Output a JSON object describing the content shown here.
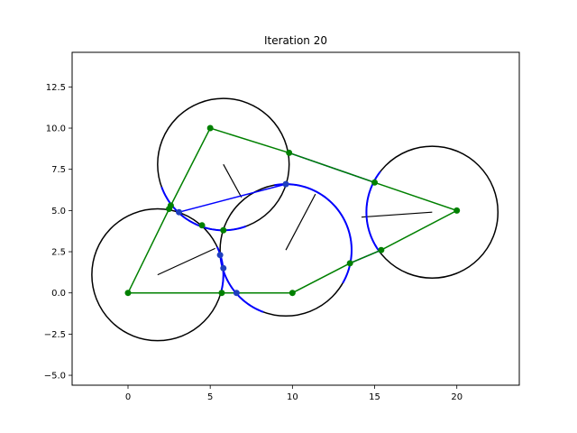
{
  "chart_data": {
    "type": "scatter",
    "title": "Iteration 20",
    "xlabel": "",
    "ylabel": "",
    "xlim": [
      -3.4,
      23.8
    ],
    "ylim": [
      -5.6,
      14.6
    ],
    "xticks": [
      0,
      5,
      10,
      15,
      20
    ],
    "yticks": [
      -5.0,
      -2.5,
      0.0,
      2.5,
      5.0,
      7.5,
      10.0,
      12.5
    ],
    "grid": false,
    "colors": {
      "circle": "#000000",
      "arc": "#0000ff",
      "polygon": "#008000",
      "point_blue": "#1f3fbf",
      "point_green": "#008000"
    },
    "circles": [
      {
        "cx": 1.8,
        "cy": 1.1,
        "r": 4.0
      },
      {
        "cx": 5.8,
        "cy": 7.8,
        "r": 4.0
      },
      {
        "cx": 9.6,
        "cy": 2.6,
        "r": 4.0
      },
      {
        "cx": 18.5,
        "cy": 4.9,
        "r": 4.0
      }
    ],
    "direction_segments": [
      [
        [
          1.8,
          1.1
        ],
        [
          5.3,
          2.7
        ]
      ],
      [
        [
          5.8,
          7.8
        ],
        [
          6.9,
          5.8
        ]
      ],
      [
        [
          9.6,
          2.6
        ],
        [
          11.4,
          6.0
        ]
      ],
      [
        [
          14.2,
          4.6
        ],
        [
          18.5,
          4.9
        ]
      ]
    ],
    "polygon": [
      [
        0,
        0
      ],
      [
        2.6,
        5.3
      ],
      [
        5.0,
        10.0
      ],
      [
        9.8,
        8.5
      ],
      [
        15.0,
        6.7
      ],
      [
        20.0,
        5.0
      ],
      [
        15.4,
        2.6
      ],
      [
        13.5,
        1.8
      ],
      [
        10.0,
        0.0
      ],
      [
        0,
        0
      ]
    ],
    "arcs": [
      {
        "circle": 0,
        "from_deg": 25,
        "to_deg": -15
      },
      {
        "circle": 1,
        "from_deg": 200,
        "to_deg": 290
      },
      {
        "circle": 2,
        "from_deg": 100,
        "to_deg": -30
      },
      {
        "circle": 2,
        "from_deg": 185,
        "to_deg": 250
      },
      {
        "circle": 3,
        "from_deg": 142,
        "to_deg": 218
      }
    ],
    "blue_segments": [
      [
        [
          3.1,
          4.9
        ],
        [
          9.6,
          6.6
        ]
      ],
      [
        [
          9.8,
          8.5
        ],
        [
          15.0,
          6.7
        ]
      ],
      [
        [
          13.5,
          1.8
        ],
        [
          15.4,
          2.6
        ]
      ],
      [
        [
          5.7,
          0.0
        ],
        [
          6.6,
          0.0
        ]
      ]
    ],
    "points_blue": [
      [
        3.1,
        4.9
      ],
      [
        5.6,
        2.3
      ],
      [
        5.8,
        1.5
      ],
      [
        9.6,
        6.6
      ],
      [
        6.6,
        0.0
      ]
    ],
    "points_green": [
      [
        0,
        0
      ],
      [
        2.6,
        5.3
      ],
      [
        2.5,
        5.1
      ],
      [
        4.5,
        4.1
      ],
      [
        5.0,
        10.0
      ],
      [
        5.8,
        3.8
      ],
      [
        5.7,
        0.0
      ],
      [
        9.8,
        8.5
      ],
      [
        10.0,
        0.0
      ],
      [
        13.5,
        1.8
      ],
      [
        15.0,
        6.7
      ],
      [
        15.4,
        2.6
      ],
      [
        20.0,
        5.0
      ]
    ]
  }
}
